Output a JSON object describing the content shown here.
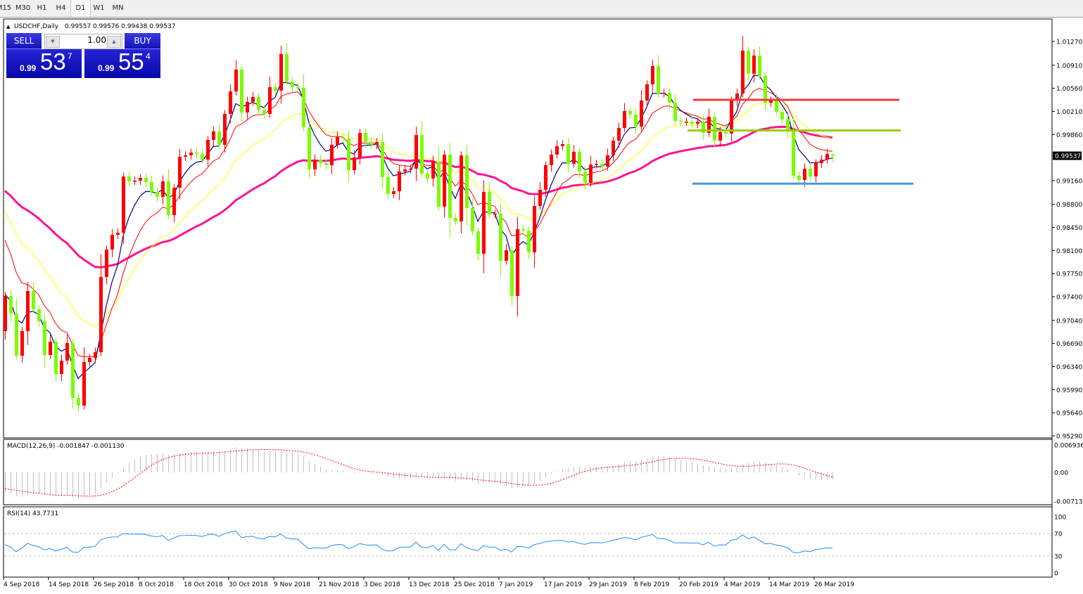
{
  "timeframes": [
    "M15",
    "M30",
    "H1",
    "H4",
    "D1",
    "W1",
    "MN"
  ],
  "active_timeframe": "D1",
  "chart": {
    "symbol_label": "USDCHF,Daily",
    "ohlc_label": "0.99557 0.99576 0.99438 0.99537",
    "current_price_label": "0.99537"
  },
  "trade_panel": {
    "sell_label": "SELL",
    "buy_label": "BUY",
    "lot": "1.00",
    "sell_prefix": "0.99",
    "sell_big": "53",
    "sell_sup": "7",
    "buy_prefix": "0.99",
    "buy_big": "55",
    "buy_sup": "4"
  },
  "colors": {
    "bull_candle": "#ff0000",
    "bear_candle": "#7cfc00",
    "ma_fast": "#000080",
    "ma_mid": "#ff0000",
    "ma_slow": "#ffff00",
    "ma_long": "#ff1493",
    "macd_hist": "#c0c0c0",
    "macd_signal": "#ff0000",
    "rsi_line": "#1e90ff",
    "resistance_line": "#f03c3c",
    "pivot_line": "#9acd00",
    "support_line": "#4499e0",
    "price_tag_bg": "#000000"
  },
  "chart_data": [
    {
      "type": "candlestick",
      "title": "USDCHF,Daily",
      "note_last_bar_ohlc": [
        0.99557,
        0.99576,
        0.99438,
        0.99537
      ],
      "first_open": 0.96878,
      "closes": [
        0.97411,
        0.97145,
        0.96505,
        0.96878,
        0.97486,
        0.97209,
        0.97027,
        0.96516,
        0.96718,
        0.96228,
        0.9643,
        0.96697,
        0.95865,
        0.95748,
        0.96409,
        0.96473,
        0.96558,
        0.97699,
        0.98115,
        0.98338,
        0.9837,
        0.99223,
        0.99149,
        0.99159,
        0.99202,
        0.99138,
        0.98989,
        0.98914,
        0.99149,
        0.98637,
        0.99053,
        0.99522,
        0.99543,
        0.99586,
        0.99564,
        0.99479,
        0.99778,
        0.99906,
        0.99703,
        1.00172,
        1.00513,
        1.00844,
        1.00193,
        1.00353,
        1.00428,
        1.00236,
        1.00172,
        1.00577,
        1.00524,
        1.01078,
        1.00662,
        1.00577,
        1.00566,
        0.99969,
        0.9933,
        0.99479,
        0.99426,
        0.99394,
        0.99703,
        0.9982,
        0.99799,
        0.99319,
        0.99511,
        0.99884,
        0.99746,
        0.99703,
        0.99746,
        0.99213,
        0.98957,
        0.98999,
        0.99298,
        0.9933,
        0.99341,
        0.99852,
        0.99266,
        0.99191,
        0.99447,
        0.98765,
        0.99554,
        0.98594,
        0.98541,
        0.99543,
        0.98744,
        0.98392,
        0.98051,
        0.98989,
        0.98648,
        0.98658,
        0.97944,
        0.98104,
        0.97411,
        0.98424,
        0.98403,
        0.98072,
        0.98776,
        0.99021,
        0.99394,
        0.99554,
        0.99682,
        0.99714,
        0.99415,
        0.99596,
        0.99298,
        0.99127,
        0.99404,
        0.99415,
        0.99373,
        0.99543,
        0.99767,
        0.99959,
        1.00215,
        1.00161,
        0.9998,
        1.00375,
        1.0062,
        1.00897,
        1.00481,
        1.00492,
        1.00343,
        1.00065,
        1.00055,
        1.00055,
        1.00023,
        1.00055,
        0.99884,
        1.00129,
        0.99767,
        0.99895,
        0.99874,
        1.00375,
        1.00481,
        1.01131,
        1.0078,
        1.01057,
        1.00748,
        1.00343,
        1.00375,
        1.00204,
        1.00087,
        0.99906,
        0.99234,
        0.9917,
        0.99341,
        0.99223,
        0.99426,
        0.99479,
        0.99564,
        0.99537
      ],
      "moving_average_periods": [
        5,
        10,
        20,
        50
      ],
      "horizontal_lines": [
        {
          "role": "resistance",
          "price": 1.00385
        },
        {
          "role": "pivot",
          "price": 0.9992
        },
        {
          "role": "support",
          "price": 0.99114
        }
      ],
      "ylim": [
        0.9529,
        1.0127
      ],
      "y_tick_labels": [
        "1.01270",
        "1.00910",
        "1.00560",
        "1.00210",
        "0.99860",
        "0.99537",
        "0.99160",
        "0.98800",
        "0.98450",
        "0.98100",
        "0.97750",
        "0.97400",
        "0.97040",
        "0.96690",
        "0.96340",
        "0.95990",
        "0.95640",
        "0.95290"
      ],
      "x_tick_labels": [
        "4 Sep 2018",
        "14 Sep 2018",
        "26 Sep 2018",
        "8 Oct 2018",
        "18 Oct 2018",
        "30 Oct 2018",
        "9 Nov 2018",
        "21 Nov 2018",
        "3 Dec 2018",
        "13 Dec 2018",
        "25 Dec 2018",
        "7 Jan 2019",
        "17 Jan 2019",
        "29 Jan 2019",
        "8 Feb 2019",
        "20 Feb 2019",
        "4 Mar 2019",
        "14 Mar 2019",
        "26 Mar 2019"
      ],
      "grid": false
    },
    {
      "type": "bar",
      "title": "MACD(12,26,9) -0.001847 -0.001130",
      "params": [
        12,
        26,
        9
      ],
      "last_values": [
        -0.001847,
        -0.00113
      ],
      "ylim": [
        -0.007138,
        0.006936
      ],
      "y_tick_labels": [
        "0.006936",
        "0.00",
        "-0.007138"
      ]
    },
    {
      "type": "line",
      "title": "RSI(14) 43.7731",
      "period": 14,
      "last_value": 43.7731,
      "ylim": [
        0,
        100
      ],
      "levels": [
        70,
        30
      ],
      "y_tick_labels": [
        "100",
        "70",
        "30",
        "0"
      ]
    }
  ]
}
